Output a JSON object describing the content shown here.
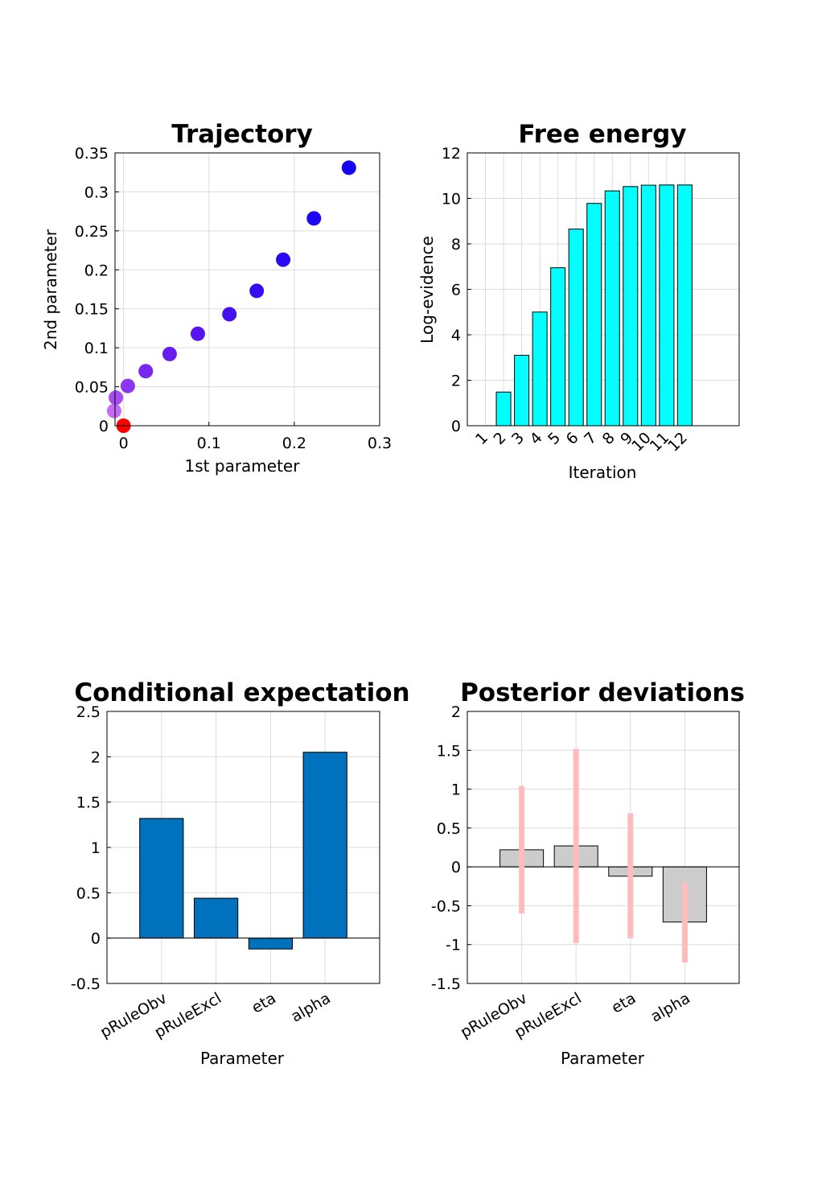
{
  "chart_data": [
    {
      "type": "scatter",
      "title": "Trajectory",
      "xlabel": "1st parameter",
      "ylabel": "2nd parameter",
      "xlim": [
        -0.01,
        0.3
      ],
      "ylim": [
        0,
        0.35
      ],
      "xticks": [
        "0",
        "0.1",
        "0.2",
        "0.3"
      ],
      "yticks": [
        "0",
        "0.05",
        "0.1",
        "0.15",
        "0.2",
        "0.25",
        "0.3",
        "0.35"
      ],
      "grid": true,
      "points": [
        {
          "x": 0.0,
          "y": 0.0,
          "color": "#ff0000"
        },
        {
          "x": -0.011,
          "y": 0.019,
          "color": "#c66af5"
        },
        {
          "x": -0.009,
          "y": 0.036,
          "color": "#a54cf2"
        },
        {
          "x": 0.005,
          "y": 0.051,
          "color": "#8a35ef"
        },
        {
          "x": 0.026,
          "y": 0.07,
          "color": "#7727ee"
        },
        {
          "x": 0.054,
          "y": 0.092,
          "color": "#671cef"
        },
        {
          "x": 0.087,
          "y": 0.118,
          "color": "#5614ef"
        },
        {
          "x": 0.124,
          "y": 0.143,
          "color": "#460ff0"
        },
        {
          "x": 0.156,
          "y": 0.173,
          "color": "#380cf0"
        },
        {
          "x": 0.187,
          "y": 0.213,
          "color": "#2a09f0"
        },
        {
          "x": 0.223,
          "y": 0.266,
          "color": "#1f06f1"
        },
        {
          "x": 0.264,
          "y": 0.331,
          "color": "#1503f2"
        }
      ]
    },
    {
      "type": "bar",
      "title": "Free energy",
      "xlabel": "Iteration",
      "ylabel": "Log-evidence",
      "categories": [
        "1",
        "2",
        "3",
        "4",
        "5",
        "6",
        "7",
        "8",
        "9",
        "10",
        "11",
        "12"
      ],
      "values": [
        0,
        1.48,
        3.1,
        5.0,
        6.95,
        8.65,
        9.78,
        10.33,
        10.52,
        10.58,
        10.59,
        10.59
      ],
      "ylim": [
        0,
        12
      ],
      "yticks": [
        "0",
        "2",
        "4",
        "6",
        "8",
        "10",
        "12"
      ],
      "bar_color": "#00ffff",
      "grid": true
    },
    {
      "type": "bar",
      "title": "Conditional expectation",
      "xlabel": "Parameter",
      "ylabel": "",
      "categories": [
        "pRuleObv",
        "pRuleExcl",
        "eta",
        "alpha"
      ],
      "values": [
        1.32,
        0.44,
        -0.12,
        2.05
      ],
      "ylim": [
        -0.5,
        2.5
      ],
      "yticks": [
        "-0.5",
        "0",
        "0.5",
        "1",
        "1.5",
        "2",
        "2.5"
      ],
      "bar_color": "#0072bd",
      "grid": true
    },
    {
      "type": "bar",
      "title": "Posterior deviations",
      "xlabel": "Parameter",
      "ylabel": "",
      "categories": [
        "pRuleObv",
        "pRuleExcl",
        "eta",
        "alpha"
      ],
      "values": [
        0.22,
        0.27,
        -0.12,
        -0.71
      ],
      "error_ranges": [
        [
          -0.6,
          1.04
        ],
        [
          -0.98,
          1.52
        ],
        [
          -0.92,
          0.69
        ],
        [
          -1.23,
          -0.2
        ]
      ],
      "ylim": [
        -1.5,
        2
      ],
      "yticks": [
        "-1.5",
        "-1",
        "-0.5",
        "0",
        "0.5",
        "1",
        "1.5",
        "2"
      ],
      "bar_color": "#cccccc",
      "error_color": "#ffbcbc",
      "grid": true
    }
  ]
}
